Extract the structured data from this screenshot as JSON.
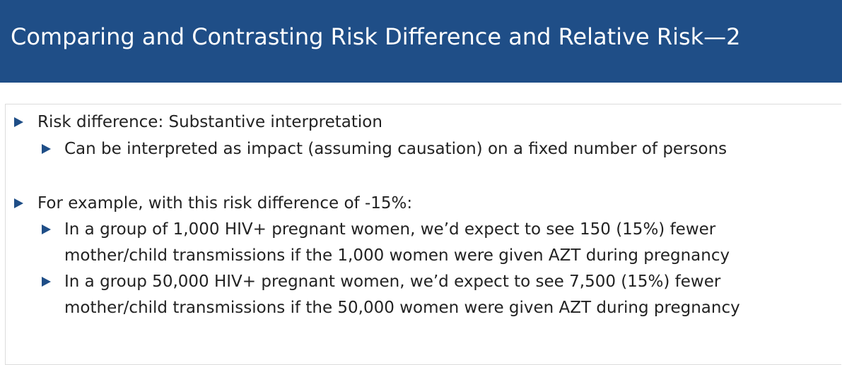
{
  "slide": {
    "title": "Comparing and Contrasting Risk Difference and Relative Risk—2",
    "bullet_icon": "blue-triangle-bullet",
    "accent_color": "#1f4e87",
    "bullets": [
      {
        "text": "Risk difference: Substantive interpretation",
        "sub_bullets": [
          {
            "lines": [
              "Can be interpreted as impact (assuming causation) on a fixed number of persons"
            ]
          }
        ]
      },
      {
        "text": "For example, with this risk difference of -15%:",
        "sub_bullets": [
          {
            "lines": [
              "In a group of 1,000 HIV+ pregnant women, we’d expect to see 150 (15%) fewer",
              "mother/child transmissions if the 1,000 women were given AZT during pregnancy"
            ]
          },
          {
            "lines": [
              "In a group 50,000 HIV+ pregnant women, we’d expect to see 7,500 (15%) fewer",
              "mother/child transmissions if the 50,000 women were given AZT during pregnancy"
            ]
          }
        ]
      }
    ]
  }
}
